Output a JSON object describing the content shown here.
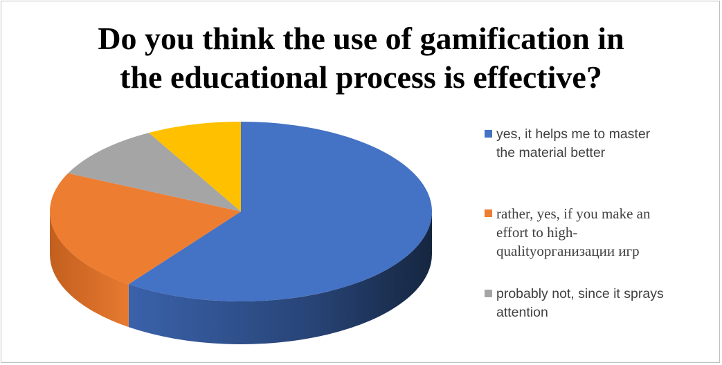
{
  "chart_data": {
    "type": "pie",
    "style": "3d",
    "title_lines": [
      "Do you think the use of gamification in",
      "the educational process is effective?"
    ],
    "legend_position": "right",
    "slices": [
      {
        "label": "yes, it helps me to master the material better",
        "value": 60,
        "color": "#4472c4"
      },
      {
        "label": "rather, yes, if you make an effort to high-qualityорганизации игр",
        "value": 22,
        "color": "#ed7d31"
      },
      {
        "label": "probably not, since it sprays attention",
        "value": 10,
        "color": "#a5a5a5"
      },
      {
        "label": "",
        "value": 8,
        "color": "#ffc000"
      }
    ]
  },
  "legend": [
    {
      "lines": [
        "yes, it helps me to master",
        "the material better"
      ],
      "color": "#4472c4",
      "font": "sans"
    },
    {
      "lines": [
        "rather, yes, if you make an",
        "effort to high-",
        "qualityорганизации игр"
      ],
      "color": "#ed7d31",
      "font": "serif"
    },
    {
      "lines": [
        "probably not, since it sprays",
        "attention"
      ],
      "color": "#a5a5a5",
      "font": "sans"
    }
  ]
}
